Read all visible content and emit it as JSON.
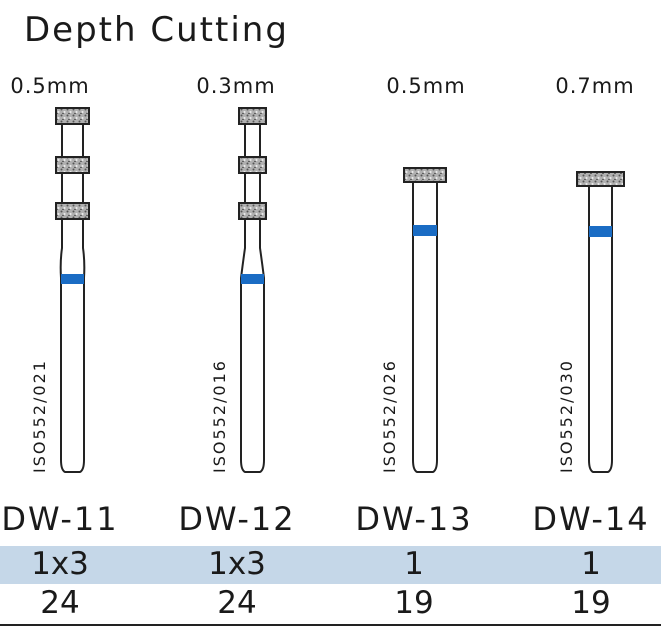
{
  "title": "Depth Cutting",
  "products": [
    {
      "size": "0.5mm",
      "iso": "ISO552/021",
      "code": "DW-11",
      "row1": "1x3",
      "row2": "24"
    },
    {
      "size": "0.3mm",
      "iso": "ISO552/016",
      "code": "DW-12",
      "row1": "1x3",
      "row2": "24"
    },
    {
      "size": "0.5mm",
      "iso": "ISO552/026",
      "code": "DW-13",
      "row1": "1",
      "row2": "19"
    },
    {
      "size": "0.7mm",
      "iso": "ISO552/030",
      "code": "DW-14",
      "row1": "1",
      "row2": "19"
    }
  ],
  "colors": {
    "band": "#1a6cc4",
    "row_highlight": "#c5d7e8",
    "diamond": "#8a8a8a"
  }
}
